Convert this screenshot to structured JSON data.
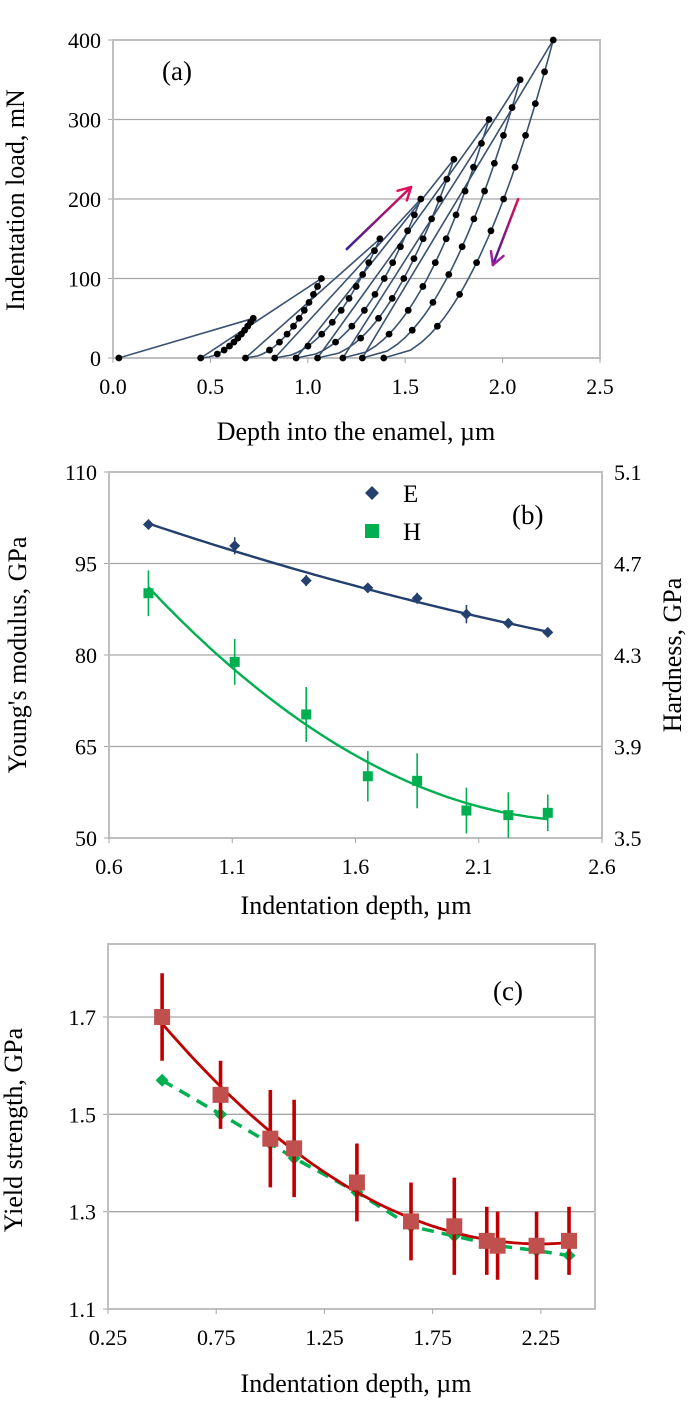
{
  "chart_data": [
    {
      "panel": "(a)",
      "type": "line",
      "xlabel": "Depth into the enamel, µm",
      "ylabel": "Indentation load, mN",
      "xlim": [
        0.0,
        2.5
      ],
      "ylim": [
        0,
        400
      ],
      "xticks": [
        "0.0",
        "0.5",
        "1.0",
        "1.5",
        "2.0",
        "2.5"
      ],
      "yticks": [
        "0",
        "100",
        "200",
        "300",
        "400"
      ],
      "grid": "horizontal",
      "line_color": "#3a5270",
      "marker_color": "#000000",
      "start_depth": 0.03,
      "cycles": [
        {
          "peak_load": 50,
          "peak_depth": 0.72,
          "residual_depth": 0.45
        },
        {
          "peak_load": 100,
          "peak_depth": 1.07,
          "residual_depth": 0.68
        },
        {
          "peak_load": 150,
          "peak_depth": 1.37,
          "residual_depth": 0.83
        },
        {
          "peak_load": 200,
          "peak_depth": 1.58,
          "residual_depth": 0.94
        },
        {
          "peak_load": 250,
          "peak_depth": 1.75,
          "residual_depth": 1.05
        },
        {
          "peak_load": 300,
          "peak_depth": 1.93,
          "residual_depth": 1.18
        },
        {
          "peak_load": 350,
          "peak_depth": 2.09,
          "residual_depth": 1.28
        },
        {
          "peak_load": 400,
          "peak_depth": 2.26,
          "residual_depth": 1.39
        }
      ],
      "arrows": [
        {
          "direction": "loading",
          "from": [
            1.2,
            137
          ],
          "to": [
            1.53,
            215
          ]
        },
        {
          "direction": "unloading",
          "from": [
            2.08,
            200
          ],
          "to": [
            1.95,
            117
          ]
        }
      ],
      "arrow_colors": [
        "#3a1f9a",
        "#e0105a"
      ]
    },
    {
      "panel": "(b)",
      "type": "scatter",
      "xlabel": "Indentation depth, µm",
      "ylabel": "Young's modulus, GPa",
      "ylabel_right": "Hardness, GPa",
      "xlim": [
        0.6,
        2.6
      ],
      "ylim": [
        50,
        110
      ],
      "ylim_right": [
        3.5,
        5.1
      ],
      "xticks": [
        "0.6",
        "1.1",
        "1.6",
        "2.1",
        "2.6"
      ],
      "yticks": [
        "50",
        "65",
        "80",
        "95",
        "110"
      ],
      "yticks_right": [
        "3.5",
        "3.9",
        "4.3",
        "4.7",
        "5.1"
      ],
      "grid": "horizontal",
      "legend": "top-center",
      "x": [
        0.76,
        1.11,
        1.4,
        1.65,
        1.85,
        2.05,
        2.22,
        2.38
      ],
      "series": [
        {
          "name": "E",
          "axis": "left",
          "marker": "diamond",
          "color": "#23406e",
          "values": [
            101.4,
            97.9,
            92.2,
            91.0,
            89.3,
            86.7,
            85.2,
            83.7
          ],
          "errors": [
            0.8,
            1.4,
            0.9,
            0.6,
            0.9,
            1.5,
            0.5,
            0.5
          ],
          "trendline": "polynomial"
        },
        {
          "name": "H",
          "axis": "right",
          "marker": "square",
          "color": "#00b050",
          "values": [
            4.57,
            4.27,
            4.04,
            3.77,
            3.75,
            3.62,
            3.6,
            3.61
          ],
          "errors": [
            0.1,
            0.1,
            0.12,
            0.11,
            0.12,
            0.1,
            0.1,
            0.08
          ],
          "trendline": "polynomial"
        }
      ]
    },
    {
      "panel": "(c)",
      "type": "scatter",
      "xlabel": "Indentation depth, µm",
      "ylabel": "Yield strength, GPa",
      "xlim": [
        0.25,
        2.5
      ],
      "ylim": [
        1.1,
        1.85
      ],
      "xticks": [
        "0.25",
        "0.75",
        "1.25",
        "1.75",
        "2.25"
      ],
      "yticks": [
        "1.1",
        "1.3",
        "1.5",
        "1.7"
      ],
      "grid": "horizontal",
      "series": [
        {
          "marker": "square",
          "color": "#c0504d",
          "line_color": "#c00000",
          "line": "polynomial-solid",
          "x": [
            0.5,
            0.77,
            1.0,
            1.11,
            1.4,
            1.65,
            1.85,
            2.0,
            2.05,
            2.23,
            2.38
          ],
          "values": [
            1.7,
            1.54,
            1.45,
            1.43,
            1.36,
            1.28,
            1.27,
            1.24,
            1.23,
            1.23,
            1.24
          ],
          "errors": [
            0.09,
            0.07,
            0.1,
            0.1,
            0.08,
            0.08,
            0.1,
            0.07,
            0.07,
            0.07,
            0.07
          ]
        },
        {
          "marker": "diamond",
          "color": "#00b050",
          "line": "dashed",
          "x": [
            0.5,
            0.77,
            1.0,
            1.11,
            1.4,
            1.65,
            1.85,
            2.05,
            2.23,
            2.38
          ],
          "values": [
            1.57,
            1.5,
            1.44,
            1.41,
            1.34,
            1.27,
            1.25,
            1.23,
            1.22,
            1.21
          ]
        }
      ]
    }
  ]
}
